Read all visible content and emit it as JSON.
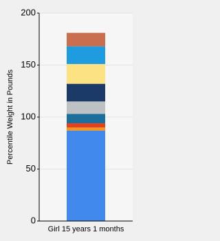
{
  "chart_data": {
    "type": "stacked_bar",
    "y_label": "Percentile Weight in Pounds",
    "categories": [
      "Girl 15 years 1 months"
    ],
    "series": [
      {
        "color": "#4189ed",
        "values": [
          87
        ]
      },
      {
        "color": "#f7941d",
        "values": [
          3
        ]
      },
      {
        "color": "#e5411d",
        "values": [
          4
        ]
      },
      {
        "color": "#1b6f9d",
        "values": [
          9
        ]
      },
      {
        "color": "#bec1c4",
        "values": [
          12
        ]
      },
      {
        "color": "#1c3a67",
        "values": [
          17
        ]
      },
      {
        "color": "#fde283",
        "values": [
          19
        ]
      },
      {
        "color": "#1f9ce0",
        "values": [
          17
        ]
      },
      {
        "color": "#c96e4e",
        "values": [
          13
        ]
      }
    ],
    "ylim": [
      0,
      200
    ],
    "yticks": [
      0,
      50,
      100,
      150,
      200
    ],
    "grid": true
  }
}
